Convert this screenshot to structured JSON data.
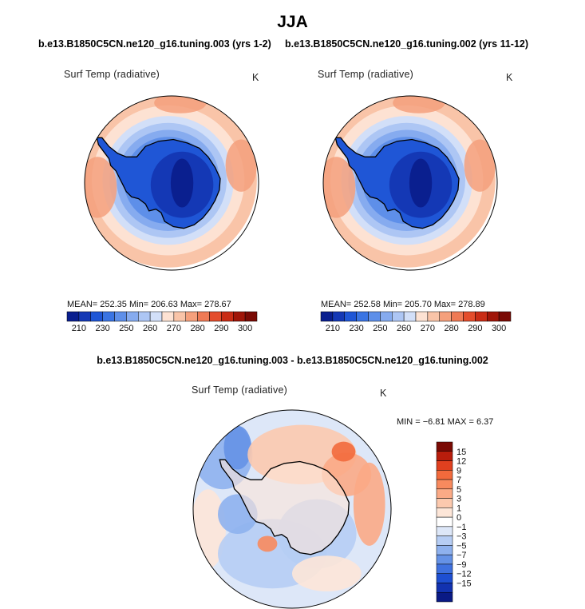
{
  "page": {
    "title": "JJA"
  },
  "chart_data": [
    {
      "type": "heatmap",
      "projection": "south-polar-stereographic",
      "title": "b.e13.B1850C5CN.ne120_g16.tuning.003 (yrs 1-2)",
      "variable": "Surf Temp (radiative)",
      "units": "K",
      "stats": {
        "mean": "252.35",
        "min": "206.63",
        "max": "278.67"
      },
      "stats_text": "MEAN= 252.35   Min= 206.63   Max= 278.67",
      "colorbar": {
        "orientation": "horizontal",
        "levels": [
          210,
          220,
          230,
          240,
          250,
          255,
          260,
          265,
          270,
          275,
          280,
          285,
          290,
          295,
          300
        ],
        "labels": [
          "210",
          "230",
          "250",
          "260",
          "270",
          "280",
          "290",
          "300"
        ],
        "colors": [
          "#0a1f8f",
          "#1438b5",
          "#1f56d6",
          "#3a74e3",
          "#5e8fe9",
          "#86abef",
          "#adc6f4",
          "#d2dff8",
          "#fde2d3",
          "#f9c4a8",
          "#f5a07c",
          "#ef7a55",
          "#e44d2c",
          "#c92c15",
          "#a01508",
          "#7a0a04"
        ]
      }
    },
    {
      "type": "heatmap",
      "projection": "south-polar-stereographic",
      "title": "b.e13.B1850C5CN.ne120_g16.tuning.002 (yrs 11-12)",
      "variable": "Surf Temp (radiative)",
      "units": "K",
      "stats": {
        "mean": "252.58",
        "min": "205.70",
        "max": "278.89"
      },
      "stats_text": "MEAN= 252.58   Min= 205.70   Max= 278.89",
      "colorbar": {
        "orientation": "horizontal",
        "levels": [
          210,
          220,
          230,
          240,
          250,
          255,
          260,
          265,
          270,
          275,
          280,
          285,
          290,
          295,
          300
        ],
        "labels": [
          "210",
          "230",
          "250",
          "260",
          "270",
          "280",
          "290",
          "300"
        ],
        "colors": [
          "#0a1f8f",
          "#1438b5",
          "#1f56d6",
          "#3a74e3",
          "#5e8fe9",
          "#86abef",
          "#adc6f4",
          "#d2dff8",
          "#fde2d3",
          "#f9c4a8",
          "#f5a07c",
          "#ef7a55",
          "#e44d2c",
          "#c92c15",
          "#a01508",
          "#7a0a04"
        ]
      }
    },
    {
      "type": "heatmap",
      "projection": "south-polar-stereographic",
      "title": "b.e13.B1850C5CN.ne120_g16.tuning.003 - b.e13.B1850C5CN.ne120_g16.tuning.002",
      "variable": "Surf Temp (radiative)",
      "units": "K",
      "stats": {
        "min": "-6.81",
        "max": "6.37"
      },
      "stats_text": "MIN =  −6.81  MAX =   6.37",
      "colorbar": {
        "orientation": "vertical",
        "labels": [
          "15",
          "12",
          "9",
          "7",
          "5",
          "3",
          "1",
          "0",
          "−1",
          "−3",
          "−5",
          "−7",
          "−9",
          "−12",
          "−15"
        ],
        "colors": [
          "#7a0a04",
          "#b81d0c",
          "#e0401f",
          "#f26a3c",
          "#f88a5e",
          "#fbaa86",
          "#fcc9ae",
          "#fde6d8",
          "#ffffff",
          "#dde7f8",
          "#b6cdf4",
          "#8eb1ee",
          "#6592e6",
          "#3f71df",
          "#1e4fd2",
          "#1232b0",
          "#0a1a85"
        ]
      }
    }
  ]
}
